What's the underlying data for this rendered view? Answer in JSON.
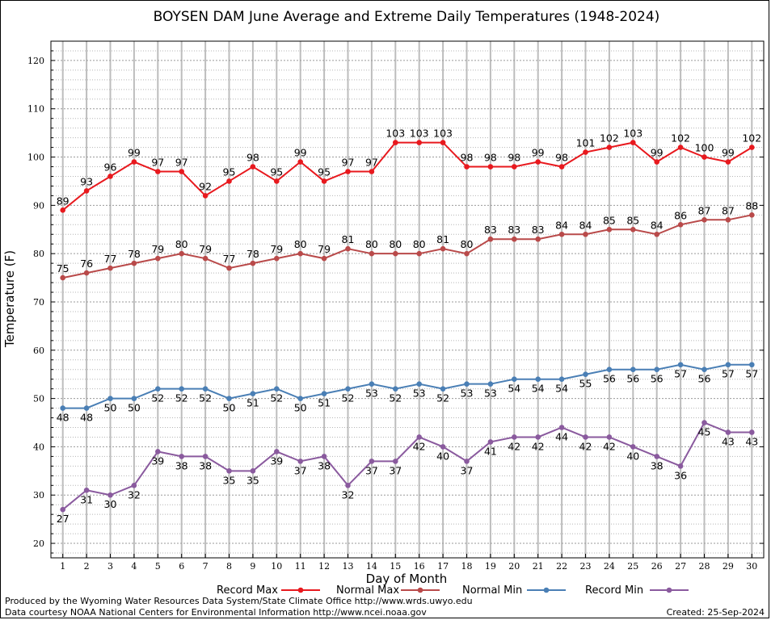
{
  "chart_data": {
    "type": "line",
    "title": "BOYSEN DAM June Average and Extreme Daily Temperatures (1948-2024)",
    "xlabel": "Day of Month",
    "ylabel": "Temperature (F)",
    "x": [
      1,
      2,
      3,
      4,
      5,
      6,
      7,
      8,
      9,
      10,
      11,
      12,
      13,
      14,
      15,
      16,
      17,
      18,
      19,
      20,
      21,
      22,
      23,
      24,
      25,
      26,
      27,
      28,
      29,
      30
    ],
    "xlim": [
      0.5,
      30.5
    ],
    "ylim": [
      17,
      124
    ],
    "yticks": [
      20,
      30,
      40,
      50,
      60,
      70,
      80,
      90,
      100,
      110,
      120
    ],
    "grid": true,
    "legend_position": "bottom",
    "series": [
      {
        "name": "Record Max",
        "color": "#e8191e",
        "values": [
          89,
          93,
          96,
          99,
          97,
          97,
          92,
          95,
          98,
          95,
          99,
          95,
          97,
          97,
          103,
          103,
          103,
          98,
          98,
          98,
          99,
          98,
          101,
          102,
          103,
          99,
          102,
          100,
          99,
          102
        ]
      },
      {
        "name": "Normal Max",
        "color": "#b94a4a",
        "values": [
          75,
          76,
          77,
          78,
          79,
          80,
          79,
          77,
          78,
          79,
          80,
          79,
          81,
          80,
          80,
          80,
          81,
          80,
          83,
          83,
          83,
          84,
          84,
          85,
          85,
          84,
          86,
          87,
          87,
          88
        ]
      },
      {
        "name": "Normal Min",
        "color": "#4a7fb5",
        "values": [
          48,
          48,
          50,
          50,
          52,
          52,
          52,
          50,
          51,
          52,
          50,
          51,
          52,
          53,
          52,
          53,
          52,
          53,
          53,
          54,
          54,
          54,
          55,
          56,
          56,
          56,
          57,
          56,
          57,
          57
        ]
      },
      {
        "name": "Record Min",
        "color": "#8a5a9e",
        "values": [
          27,
          31,
          30,
          32,
          39,
          38,
          38,
          35,
          35,
          39,
          37,
          38,
          32,
          37,
          37,
          42,
          40,
          37,
          41,
          42,
          42,
          44,
          42,
          42,
          40,
          38,
          36,
          45,
          43,
          43
        ]
      }
    ]
  },
  "footer": {
    "produced_by": "Produced by the Wyoming Water Resources Data System/State Climate Office http://www.wrds.uwyo.edu",
    "data_courtesy": "Data courtesy NOAA National Centers for Environmental Information http://www.ncei.noaa.gov",
    "created": "Created:  25-Sep-2024"
  }
}
